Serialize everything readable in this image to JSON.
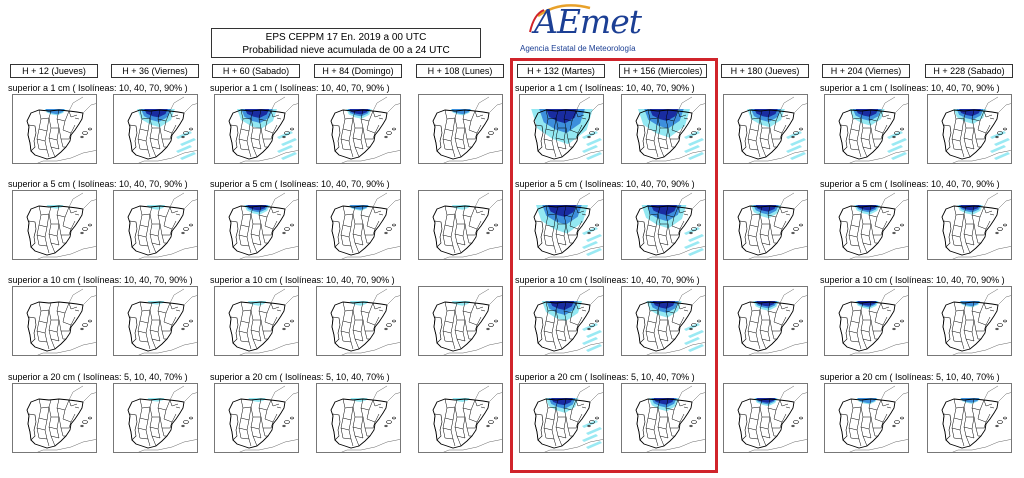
{
  "title": {
    "line1": "EPS   CEPPM    17 En. 2019    a    00 UTC",
    "line2": "Probabilidad nieve acumulada de 00 a 24 UTC"
  },
  "logo": {
    "wordmark": "AEmet",
    "subtitle": "Agencia Estatal de Meteorología"
  },
  "columns": [
    {
      "label": "H + 12   (Jueves)"
    },
    {
      "label": "H + 36   (Viernes)"
    },
    {
      "label": "H + 60   (Sabado)"
    },
    {
      "label": "H + 84   (Domingo)"
    },
    {
      "label": "H + 108   (Lunes)"
    },
    {
      "label": "H + 132   (Martes)"
    },
    {
      "label": "H + 156   (Miercoles)"
    },
    {
      "label": "H + 180   (Jueves)"
    },
    {
      "label": "H + 204   (Viernes)"
    },
    {
      "label": "H + 228   (Sabado)"
    }
  ],
  "rows": [
    {
      "label": "superior a 1 cm     ( Isolíneas: 10, 40, 70, 90% )",
      "intensity": [
        0.1,
        0.45,
        0.5,
        0.2,
        0.1,
        0.95,
        0.75,
        0.45,
        0.4,
        0.35
      ]
    },
    {
      "label": "superior a 5 cm     ( Isolíneas: 10, 40, 70, 90% )",
      "intensity": [
        0.02,
        0.05,
        0.2,
        0.08,
        0.05,
        0.75,
        0.6,
        0.3,
        0.2,
        0.2
      ]
    },
    {
      "label": "superior a 10 cm     ( Isolíneas: 10, 40, 70, 90% )",
      "intensity": [
        0.0,
        0.02,
        0.05,
        0.05,
        0.05,
        0.5,
        0.4,
        0.2,
        0.15,
        0.1
      ]
    },
    {
      "label": "superior a 20 cm     ( Isolíneas: 5, 10, 40, 70% )",
      "intensity": [
        0.0,
        0.02,
        0.03,
        0.03,
        0.03,
        0.35,
        0.3,
        0.15,
        0.1,
        0.08
      ]
    }
  ],
  "highlighted_columns": [
    "H + 132   (Martes)",
    "H + 156   (Miercoles)"
  ],
  "colors": {
    "highlight": "#d0242b",
    "snow_light": "#6fe0ee",
    "snow_mid": "#2e7fd8",
    "snow_dark": "#15219a"
  }
}
